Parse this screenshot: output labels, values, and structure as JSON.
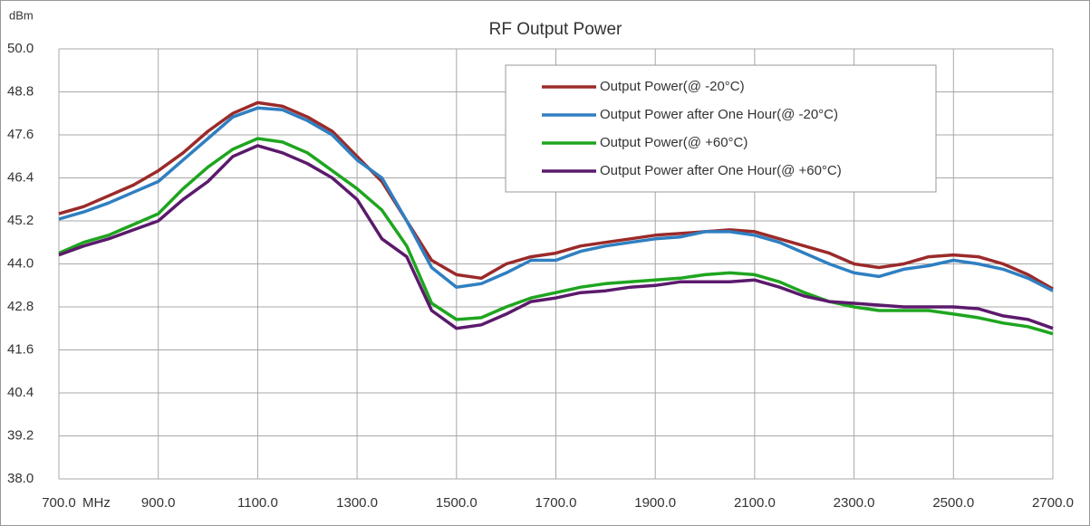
{
  "chart_data": {
    "type": "line",
    "title": "RF Output Power",
    "y_label": "dBm",
    "x_label": "MHz",
    "x": [
      700,
      750,
      800,
      850,
      900,
      950,
      1000,
      1050,
      1100,
      1150,
      1200,
      1250,
      1300,
      1350,
      1400,
      1450,
      1500,
      1550,
      1600,
      1650,
      1700,
      1750,
      1800,
      1850,
      1900,
      1950,
      2000,
      2050,
      2100,
      2150,
      2200,
      2250,
      2300,
      2350,
      2400,
      2450,
      2500,
      2550,
      2600,
      2650,
      2700
    ],
    "series": [
      {
        "name": "Output Power(@ -20°C)",
        "color": "#9b2a2a",
        "values": [
          45.4,
          45.6,
          45.9,
          46.2,
          46.6,
          47.1,
          47.7,
          48.2,
          48.5,
          48.4,
          48.1,
          47.7,
          47.0,
          46.3,
          45.2,
          44.1,
          43.7,
          43.6,
          44.0,
          44.2,
          44.3,
          44.5,
          44.6,
          44.7,
          44.8,
          44.85,
          44.9,
          44.95,
          44.9,
          44.7,
          44.5,
          44.3,
          44.0,
          43.9,
          44.0,
          44.2,
          44.25,
          44.2,
          44.0,
          43.7,
          43.3
        ]
      },
      {
        "name": "Output Power after One Hour(@ -20°C)",
        "color": "#2f7fc1",
        "values": [
          45.25,
          45.45,
          45.7,
          46.0,
          46.3,
          46.9,
          47.5,
          48.1,
          48.35,
          48.3,
          48.0,
          47.6,
          46.9,
          46.4,
          45.2,
          43.9,
          43.35,
          43.45,
          43.75,
          44.1,
          44.1,
          44.35,
          44.5,
          44.6,
          44.7,
          44.75,
          44.9,
          44.9,
          44.8,
          44.6,
          44.3,
          44.0,
          43.75,
          43.65,
          43.85,
          43.95,
          44.1,
          44.0,
          43.85,
          43.6,
          43.25
        ]
      },
      {
        "name": "Output Power(@ +60°C)",
        "color": "#1fa51f",
        "values": [
          44.3,
          44.6,
          44.8,
          45.1,
          45.4,
          46.1,
          46.7,
          47.2,
          47.5,
          47.4,
          47.1,
          46.6,
          46.1,
          45.5,
          44.5,
          42.9,
          42.45,
          42.5,
          42.8,
          43.05,
          43.2,
          43.35,
          43.45,
          43.5,
          43.55,
          43.6,
          43.7,
          43.75,
          43.7,
          43.5,
          43.2,
          42.95,
          42.8,
          42.7,
          42.7,
          42.7,
          42.6,
          42.5,
          42.35,
          42.25,
          42.05
        ]
      },
      {
        "name": "Output Power after One Hour(@ +60°C)",
        "color": "#5b1a6c",
        "values": [
          44.25,
          44.5,
          44.7,
          44.95,
          45.2,
          45.8,
          46.3,
          47.0,
          47.3,
          47.1,
          46.8,
          46.4,
          45.8,
          44.7,
          44.2,
          42.7,
          42.2,
          42.3,
          42.6,
          42.95,
          43.05,
          43.2,
          43.25,
          43.35,
          43.4,
          43.5,
          43.5,
          43.5,
          43.55,
          43.35,
          43.1,
          42.95,
          42.9,
          42.85,
          42.8,
          42.8,
          42.8,
          42.75,
          42.55,
          42.45,
          42.2
        ]
      }
    ],
    "xlim": [
      700,
      2700
    ],
    "xticks": [
      {
        "value": 700,
        "label": "700.0"
      },
      {
        "value": 900,
        "label": "900.0"
      },
      {
        "value": 1100,
        "label": "1100.0"
      },
      {
        "value": 1300,
        "label": "1300.0"
      },
      {
        "value": 1500,
        "label": "1500.0"
      },
      {
        "value": 1700,
        "label": "1700.0"
      },
      {
        "value": 1900,
        "label": "1900.0"
      },
      {
        "value": 2100,
        "label": "2100.0"
      },
      {
        "value": 2300,
        "label": "2300.0"
      },
      {
        "value": 2500,
        "label": "2500.0"
      },
      {
        "value": 2700,
        "label": "2700.0"
      }
    ],
    "ylim": [
      38,
      50
    ],
    "yticks": [
      {
        "value": 38,
        "label": "38.0"
      },
      {
        "value": 39.2,
        "label": "39.2"
      },
      {
        "value": 40.4,
        "label": "40.4"
      },
      {
        "value": 41.6,
        "label": "41.6"
      },
      {
        "value": 42.8,
        "label": "42.8"
      },
      {
        "value": 44,
        "label": "44.0"
      },
      {
        "value": 45.2,
        "label": "45.2"
      },
      {
        "value": 46.4,
        "label": "46.4"
      },
      {
        "value": 47.6,
        "label": "47.6"
      },
      {
        "value": 48.8,
        "label": "48.8"
      },
      {
        "value": 50,
        "label": "50.0"
      }
    ],
    "grid": true,
    "legend": "upper right"
  }
}
